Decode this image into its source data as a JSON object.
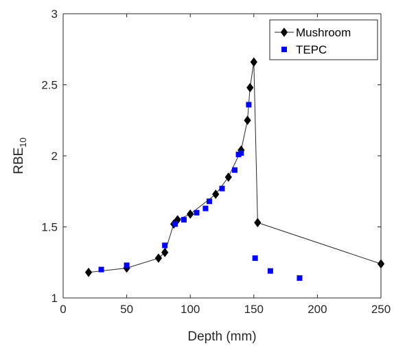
{
  "chart_data": {
    "type": "line",
    "title": "",
    "xlabel": "Depth (mm)",
    "ylabel": "RBE",
    "ylabel_sub": "10",
    "xlim": [
      0,
      250
    ],
    "ylim": [
      1,
      3
    ],
    "xticks": [
      0,
      50,
      100,
      150,
      200,
      250
    ],
    "yticks": [
      1,
      1.5,
      2,
      2.5,
      3
    ],
    "grid": false,
    "legend_position": "top-right",
    "series": [
      {
        "name": "Mushroom",
        "marker": "diamond",
        "line": true,
        "color": "#000000",
        "x": [
          20,
          50,
          75,
          80,
          87,
          90,
          100,
          120,
          130,
          140,
          145,
          147,
          150,
          153,
          250
        ],
        "y": [
          1.18,
          1.21,
          1.28,
          1.32,
          1.52,
          1.55,
          1.59,
          1.73,
          1.85,
          2.04,
          2.25,
          2.48,
          2.66,
          1.53,
          1.24
        ]
      },
      {
        "name": "TEPC",
        "marker": "square",
        "line": false,
        "color": "#0000ff",
        "x": [
          30,
          50,
          80,
          88,
          95,
          105,
          112,
          115,
          125,
          135,
          138,
          140,
          146,
          151,
          163,
          186
        ],
        "y": [
          1.2,
          1.23,
          1.37,
          1.52,
          1.55,
          1.6,
          1.63,
          1.68,
          1.77,
          1.9,
          2.01,
          2.02,
          2.36,
          1.28,
          1.19,
          1.14
        ]
      }
    ]
  }
}
